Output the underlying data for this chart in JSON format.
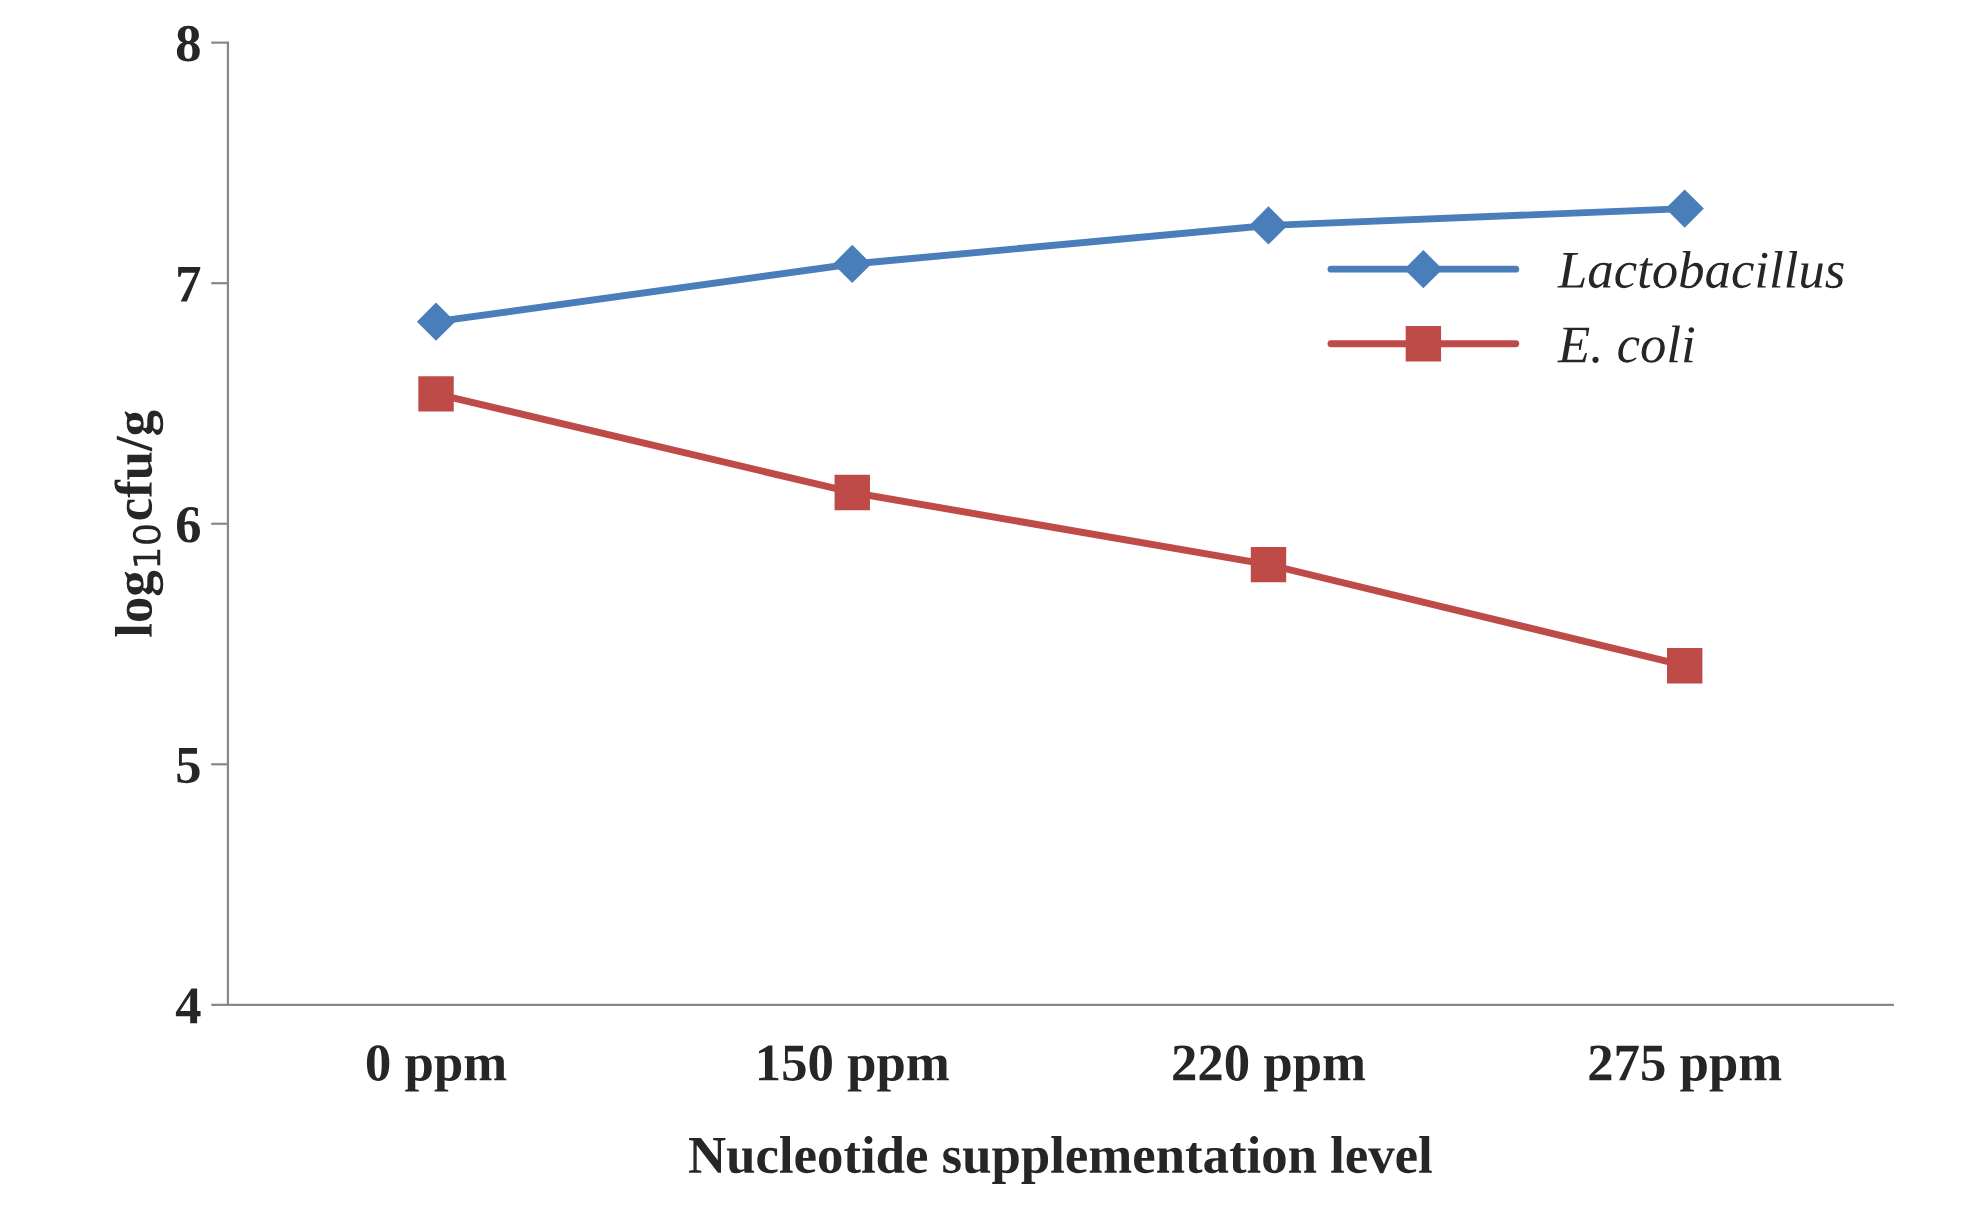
{
  "chart_data": {
    "type": "line",
    "xlabel": "Nucleotide supplementation level",
    "ylabel": "log$_{10}$cfu/g",
    "categories": [
      "0 ppm",
      "150 ppm",
      "220 ppm",
      "275 ppm"
    ],
    "series": [
      {
        "name": "Lactobacillus",
        "color": "#4a7ebb",
        "marker": "diamond",
        "values": [
          6.84,
          7.08,
          7.24,
          7.31
        ]
      },
      {
        "name": "E. coli",
        "color": "#be4b48",
        "marker": "square",
        "values": [
          6.54,
          6.13,
          5.83,
          5.41
        ]
      }
    ],
    "ylim": [
      4,
      8
    ],
    "yticks": [
      4,
      5,
      6,
      7,
      8
    ],
    "grid": false,
    "legend": "right",
    "line_style": "solid"
  }
}
